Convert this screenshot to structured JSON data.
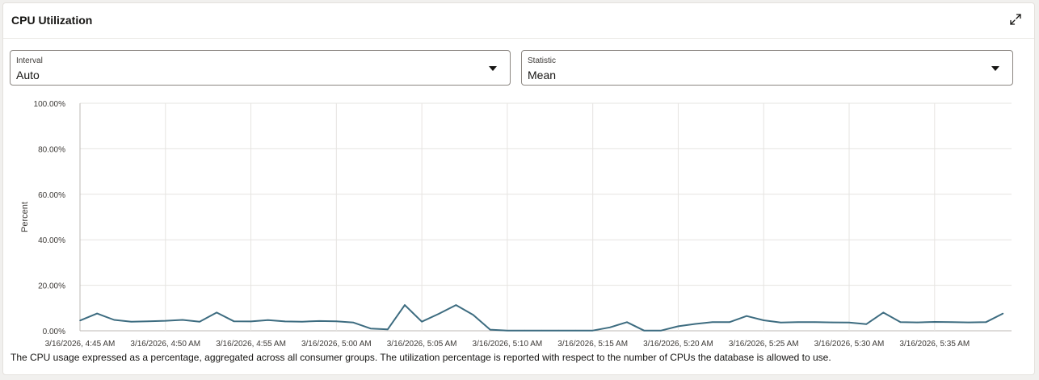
{
  "panel": {
    "title": "CPU Utilization",
    "expand_icon": "expand-diagonal-icon",
    "description": "The CPU usage expressed as a percentage, aggregated across all consumer groups. The utilization percentage is reported with respect to the number of CPUs the database is allowed to use."
  },
  "interval": {
    "label": "Interval",
    "value": "Auto"
  },
  "statistic": {
    "label": "Statistic",
    "value": "Mean"
  },
  "colors": {
    "line": "#3d6c80",
    "grid": "#e6e4e1",
    "axis": "#bdb9b4"
  },
  "chart_data": {
    "type": "line",
    "title": "",
    "xlabel": "",
    "ylabel": "Percent",
    "ylim": [
      0,
      100
    ],
    "grid": true,
    "y_ticks": [
      "0.00%",
      "20.00%",
      "40.00%",
      "60.00%",
      "80.00%",
      "100.00%"
    ],
    "y_tick_values": [
      0,
      20,
      40,
      60,
      80,
      100
    ],
    "x_ticks": [
      "3/16/2026, 4:45 AM",
      "3/16/2026, 4:50 AM",
      "3/16/2026, 4:55 AM",
      "3/16/2026, 5:00 AM",
      "3/16/2026, 5:05 AM",
      "3/16/2026, 5:10 AM",
      "3/16/2026, 5:15 AM",
      "3/16/2026, 5:20 AM",
      "3/16/2026, 5:25 AM",
      "3/16/2026, 5:30 AM",
      "3/16/2026, 5:35 AM"
    ],
    "x_tick_minutes": [
      0,
      5,
      10,
      15,
      20,
      25,
      30,
      35,
      40,
      45,
      50
    ],
    "x_range_minutes": [
      0,
      54.5
    ],
    "series": [
      {
        "x_minutes": [
          0,
          1,
          2,
          3,
          4,
          5,
          6,
          7,
          8,
          9,
          10,
          11,
          12,
          13,
          14,
          15,
          16,
          17,
          18,
          19,
          20,
          21,
          22,
          23,
          24,
          25,
          26,
          27,
          28,
          29,
          30,
          31,
          32,
          33,
          34,
          35,
          36,
          37,
          38,
          39,
          40,
          41,
          42,
          43,
          44,
          45,
          46,
          47,
          48,
          49,
          50,
          51,
          52,
          53,
          54
        ],
        "values": [
          4.5,
          7.6,
          4.8,
          4.0,
          4.2,
          4.4,
          4.8,
          4.0,
          8.0,
          4.2,
          4.1,
          4.7,
          4.1,
          4.0,
          4.3,
          4.2,
          3.6,
          1.0,
          0.6,
          11.3,
          4.0,
          7.5,
          11.3,
          7.0,
          0.5,
          0.1,
          0.1,
          0.1,
          0.1,
          0.1,
          0.1,
          1.5,
          3.8,
          0.1,
          0.1,
          2.0,
          3.0,
          3.8,
          3.8,
          6.5,
          4.6,
          3.6,
          3.8,
          3.8,
          3.7,
          3.6,
          2.9,
          8.0,
          3.8,
          3.7,
          3.9,
          3.8,
          3.7,
          3.8,
          7.6
        ]
      }
    ]
  }
}
